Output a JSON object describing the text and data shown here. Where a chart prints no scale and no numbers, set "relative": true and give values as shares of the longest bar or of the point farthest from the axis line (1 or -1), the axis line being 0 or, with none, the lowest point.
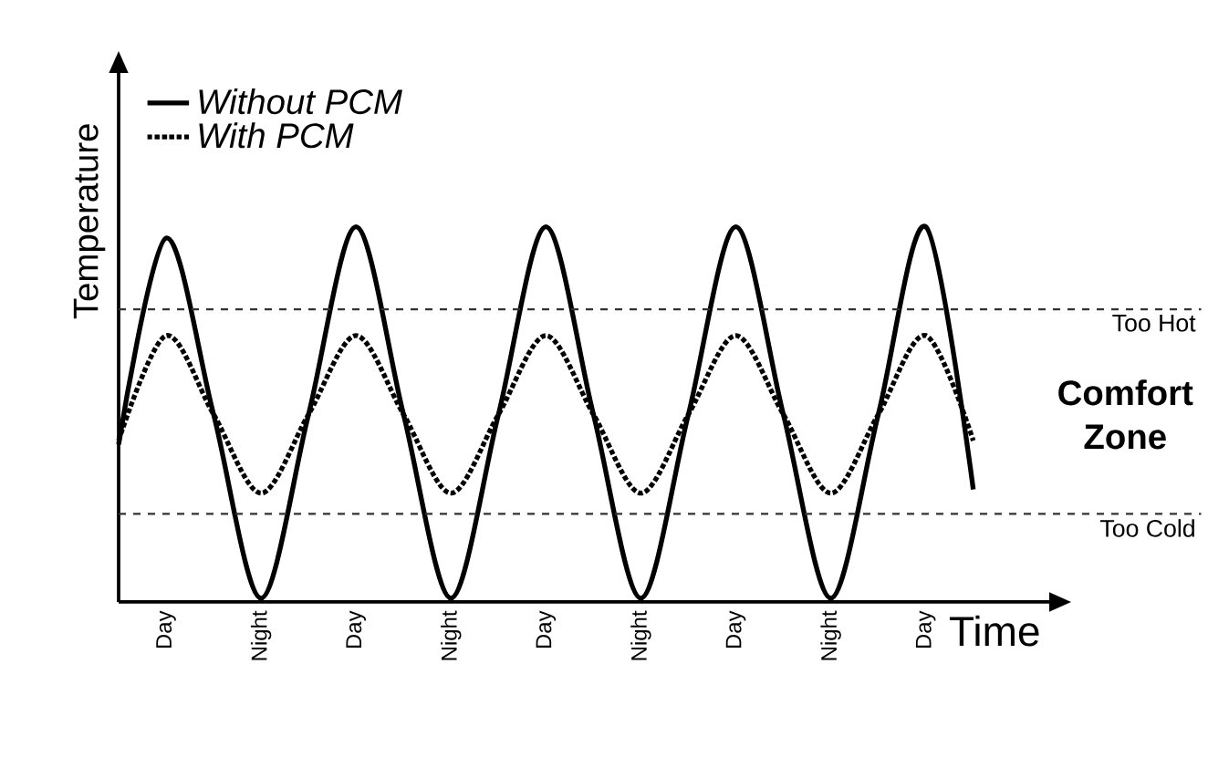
{
  "chart_data": {
    "type": "line",
    "relative": true,
    "xlabel": "Time",
    "ylabel": "Temperature",
    "legend": "top left",
    "categories": [
      null,
      "Day",
      null,
      "Night",
      null,
      "Day",
      null,
      "Night",
      null,
      "Day",
      null,
      "Night",
      null,
      "Day",
      null,
      "Night",
      null,
      "Day",
      null
    ],
    "series": [
      {
        "name": "Without PCM",
        "color": "#000000",
        "line_style": "solid",
        "values": [
          0.42,
          0.97,
          0.5,
          0.01,
          0.5,
          1,
          0.5,
          0.01,
          0.5,
          1,
          0.5,
          0.01,
          0.5,
          1,
          0.5,
          0.01,
          0.5,
          1,
          0.3
        ]
      },
      {
        "name": "With PCM",
        "color": "#000000",
        "line_style": "dotted",
        "values": [
          0.43,
          0.71,
          0.5,
          0.29,
          0.5,
          0.71,
          0.5,
          0.29,
          0.5,
          0.71,
          0.5,
          0.29,
          0.5,
          0.71,
          0.5,
          0.29,
          0.5,
          0.71,
          0.43
        ]
      }
    ],
    "ref_lines": [
      {
        "axis": "y",
        "value": 0.78,
        "label": "Too Hot",
        "color": "#333333",
        "line_style": "dashed"
      },
      {
        "axis": "y",
        "value": 0.235,
        "label": "Too Cold",
        "color": "#333333",
        "line_style": "dashed"
      }
    ],
    "annotations": [
      "Comfort Zone"
    ]
  }
}
